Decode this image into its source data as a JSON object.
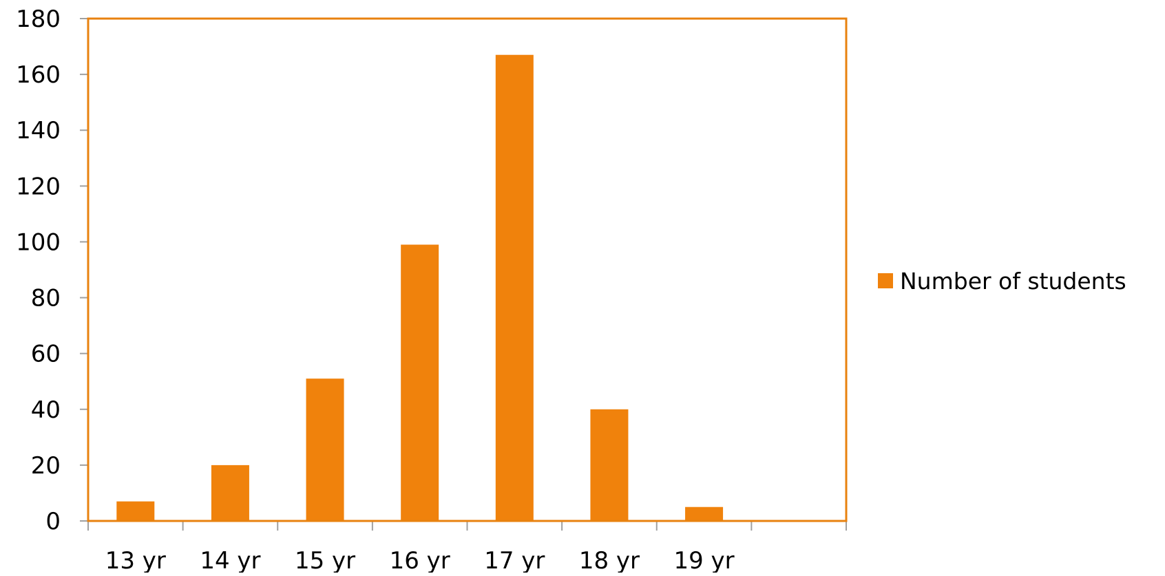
{
  "chart_data": {
    "type": "bar",
    "categories": [
      "13 yr",
      "14 yr",
      "15 yr",
      "16 yr",
      "17 yr",
      "18 yr",
      "19 yr",
      ""
    ],
    "series": [
      {
        "name": "Number of students",
        "values": [
          7,
          20,
          51,
          99,
          167,
          40,
          5,
          0
        ]
      }
    ],
    "ylim": [
      0,
      180
    ],
    "yticks": [
      0,
      20,
      40,
      60,
      80,
      100,
      120,
      140,
      160,
      180
    ],
    "grid": false,
    "legend_position": "right",
    "colors": {
      "bar": "#F0820C",
      "frame": "#E8820F",
      "axis": "#A0A0A0"
    }
  }
}
